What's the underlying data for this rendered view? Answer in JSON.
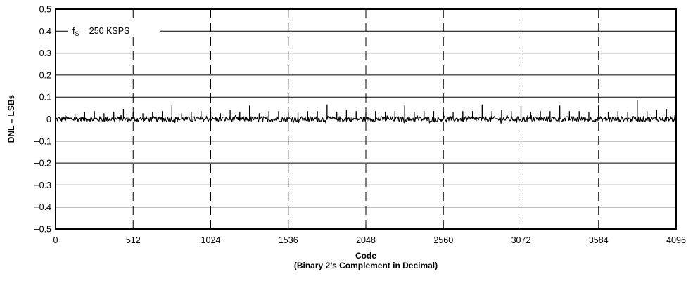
{
  "chart_data": {
    "type": "line",
    "title": "",
    "xlabel": "Code",
    "xlabel_sub": "(Binary 2’s Complement in Decimal)",
    "ylabel": "DNL – LSBs",
    "xlim": [
      0,
      4096
    ],
    "ylim": [
      -0.5,
      0.5
    ],
    "x_ticks": [
      0,
      512,
      1024,
      1536,
      2048,
      2560,
      3072,
      3584,
      4096
    ],
    "x_tick_labels": [
      "0",
      "512",
      "1024",
      "1536",
      "2048",
      "2560",
      "3072",
      "3584",
      "4096"
    ],
    "y_ticks": [
      0.5,
      0.4,
      0.3,
      0.2,
      0.1,
      0,
      -0.1,
      -0.2,
      -0.3,
      -0.4,
      -0.5
    ],
    "y_tick_labels": [
      "0.5",
      "0.4",
      "0.3",
      "0.2",
      "0.1",
      "0",
      "−0.1",
      "−0.2",
      "−0.3",
      "−0.4",
      "−0.5"
    ],
    "grid": {
      "horizontal": true,
      "vertical": "dashed"
    },
    "annotation": {
      "f": "f",
      "sub": "S",
      "rest": " = 250 KSPS"
    },
    "series": [
      {
        "description": "DNL per code, baseline noise about ±0.012 LSB with periodic positive spikes",
        "x_range": [
          0,
          4096
        ],
        "noise_amplitude": 0.012,
        "spikes": [
          {
            "x": 64,
            "y": 0.02
          },
          {
            "x": 128,
            "y": 0.025
          },
          {
            "x": 192,
            "y": 0.03
          },
          {
            "x": 256,
            "y": 0.035
          },
          {
            "x": 320,
            "y": 0.025
          },
          {
            "x": 384,
            "y": 0.03
          },
          {
            "x": 448,
            "y": 0.045
          },
          {
            "x": 512,
            "y": 0.03
          },
          {
            "x": 576,
            "y": 0.025
          },
          {
            "x": 640,
            "y": 0.03
          },
          {
            "x": 704,
            "y": 0.035
          },
          {
            "x": 768,
            "y": 0.06
          },
          {
            "x": 832,
            "y": 0.025
          },
          {
            "x": 896,
            "y": 0.03
          },
          {
            "x": 960,
            "y": 0.035
          },
          {
            "x": 1024,
            "y": 0.03
          },
          {
            "x": 1088,
            "y": 0.025
          },
          {
            "x": 1152,
            "y": 0.04
          },
          {
            "x": 1216,
            "y": 0.03
          },
          {
            "x": 1280,
            "y": 0.06
          },
          {
            "x": 1344,
            "y": 0.025
          },
          {
            "x": 1408,
            "y": 0.035
          },
          {
            "x": 1472,
            "y": 0.035
          },
          {
            "x": 1536,
            "y": 0.03
          },
          {
            "x": 1600,
            "y": 0.03
          },
          {
            "x": 1664,
            "y": 0.035
          },
          {
            "x": 1728,
            "y": 0.035
          },
          {
            "x": 1792,
            "y": 0.065
          },
          {
            "x": 1856,
            "y": 0.03
          },
          {
            "x": 1920,
            "y": 0.04
          },
          {
            "x": 1984,
            "y": 0.035
          },
          {
            "x": 2048,
            "y": 0.03
          },
          {
            "x": 2112,
            "y": 0.035
          },
          {
            "x": 2176,
            "y": 0.03
          },
          {
            "x": 2240,
            "y": 0.035
          },
          {
            "x": 2304,
            "y": 0.06
          },
          {
            "x": 2368,
            "y": 0.03
          },
          {
            "x": 2432,
            "y": 0.035
          },
          {
            "x": 2496,
            "y": 0.035
          },
          {
            "x": 2560,
            "y": 0.03
          },
          {
            "x": 2624,
            "y": 0.03
          },
          {
            "x": 2688,
            "y": 0.035
          },
          {
            "x": 2752,
            "y": 0.035
          },
          {
            "x": 2816,
            "y": 0.065
          },
          {
            "x": 2880,
            "y": 0.035
          },
          {
            "x": 2944,
            "y": 0.04
          },
          {
            "x": 3008,
            "y": 0.035
          },
          {
            "x": 3072,
            "y": 0.06
          },
          {
            "x": 3136,
            "y": 0.03
          },
          {
            "x": 3200,
            "y": 0.035
          },
          {
            "x": 3264,
            "y": 0.035
          },
          {
            "x": 3328,
            "y": 0.06
          },
          {
            "x": 3392,
            "y": 0.035
          },
          {
            "x": 3456,
            "y": 0.035
          },
          {
            "x": 3520,
            "y": 0.03
          },
          {
            "x": 3584,
            "y": 0.06
          },
          {
            "x": 3648,
            "y": 0.03
          },
          {
            "x": 3712,
            "y": 0.035
          },
          {
            "x": 3776,
            "y": 0.03
          },
          {
            "x": 3840,
            "y": 0.085
          },
          {
            "x": 3904,
            "y": 0.035
          },
          {
            "x": 3968,
            "y": 0.04
          },
          {
            "x": 4032,
            "y": 0.045
          }
        ]
      }
    ]
  }
}
